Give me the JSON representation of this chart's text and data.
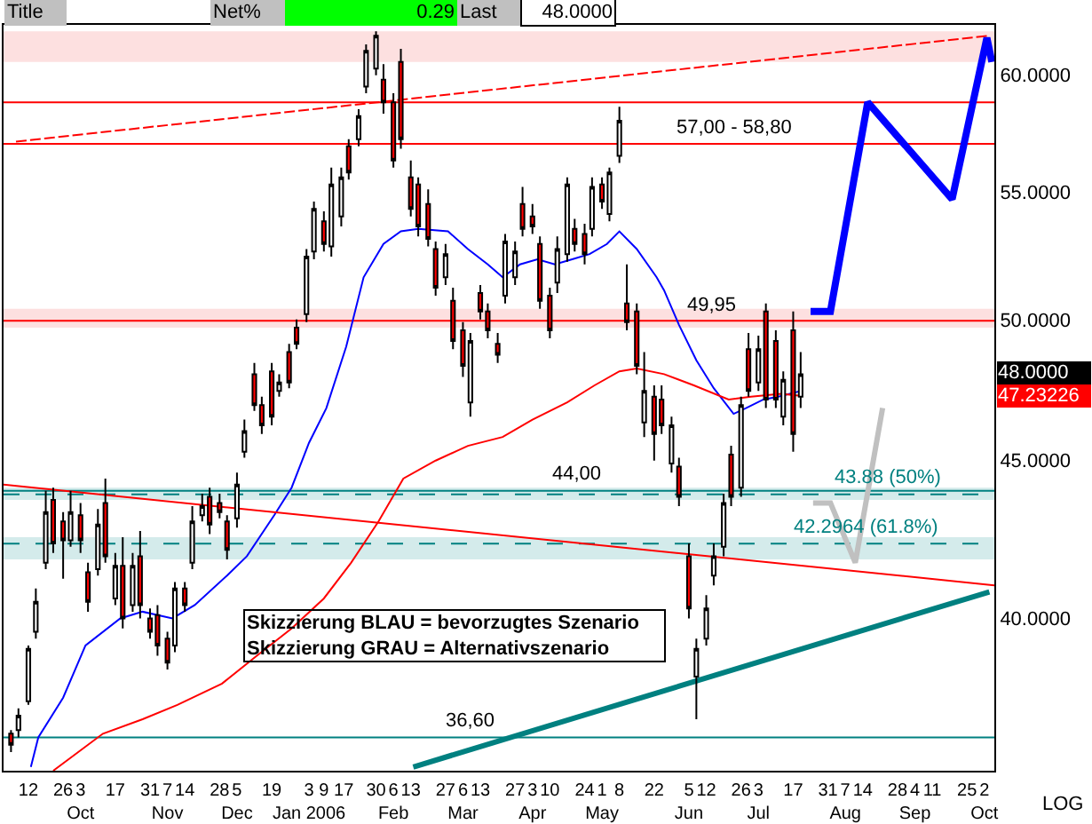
{
  "chart_data": {
    "type": "candlestick",
    "x": [
      "2005-09-05",
      "2005-09-08",
      "2005-09-12",
      "2005-09-15",
      "2005-09-19",
      "2005-09-22",
      "2005-09-26",
      "2005-09-29",
      "2005-10-03",
      "2005-10-06",
      "2005-10-10",
      "2005-10-13",
      "2005-10-17",
      "2005-10-20",
      "2005-10-24",
      "2005-10-27",
      "2005-10-31",
      "2005-11-03",
      "2005-11-07",
      "2005-11-10",
      "2005-11-14",
      "2005-11-17",
      "2005-11-21",
      "2005-11-24",
      "2005-11-28",
      "2005-12-01",
      "2005-12-05",
      "2005-12-08",
      "2005-12-12",
      "2005-12-15",
      "2005-12-19",
      "2005-12-22",
      "2005-12-26",
      "2005-12-29",
      "2006-01-02",
      "2006-01-05",
      "2006-01-09",
      "2006-01-12",
      "2006-01-16",
      "2006-01-19",
      "2006-01-23",
      "2006-01-26",
      "2006-01-30",
      "2006-02-02",
      "2006-02-06",
      "2006-02-09",
      "2006-02-13",
      "2006-02-16",
      "2006-02-20",
      "2006-02-23",
      "2006-02-27",
      "2006-03-02",
      "2006-03-06",
      "2006-03-09",
      "2006-03-13",
      "2006-03-16",
      "2006-03-20",
      "2006-03-23",
      "2006-03-27",
      "2006-03-30",
      "2006-04-03",
      "2006-04-06",
      "2006-04-10",
      "2006-04-13",
      "2006-04-17",
      "2006-04-20",
      "2006-04-24",
      "2006-04-27",
      "2006-05-01",
      "2006-05-04",
      "2006-05-08",
      "2006-05-11",
      "2006-05-15",
      "2006-05-18",
      "2006-05-22",
      "2006-05-25",
      "2006-05-29",
      "2006-06-01",
      "2006-06-05",
      "2006-06-08",
      "2006-06-12",
      "2006-06-15",
      "2006-06-19",
      "2006-06-22",
      "2006-06-26",
      "2006-06-29",
      "2006-07-03",
      "2006-07-06",
      "2006-07-10",
      "2006-07-13",
      "2006-07-17",
      "2006-07-20"
    ],
    "ohlc": [
      [
        36.7,
        36.8,
        36.2,
        36.4
      ],
      [
        36.8,
        37.4,
        36.6,
        37.2
      ],
      [
        37.6,
        39.2,
        37.5,
        39.1
      ],
      [
        39.6,
        40.9,
        39.4,
        40.5
      ],
      [
        41.7,
        44.0,
        41.5,
        43.3
      ],
      [
        43.7,
        44.1,
        42.0,
        42.3
      ],
      [
        43.0,
        43.3,
        41.2,
        42.4
      ],
      [
        42.4,
        44.0,
        42.2,
        43.3
      ],
      [
        43.2,
        43.6,
        42.0,
        42.4
      ],
      [
        41.4,
        41.7,
        40.2,
        40.5
      ],
      [
        41.5,
        43.4,
        41.3,
        42.9
      ],
      [
        43.6,
        44.4,
        41.7,
        41.9
      ],
      [
        40.6,
        42.0,
        40.4,
        41.6
      ],
      [
        41.6,
        42.5,
        39.7,
        40.0
      ],
      [
        40.4,
        42.0,
        40.2,
        41.6
      ],
      [
        41.9,
        42.7,
        40.0,
        40.4
      ],
      [
        40.0,
        40.3,
        39.4,
        39.6
      ],
      [
        40.1,
        40.4,
        38.9,
        39.2
      ],
      [
        39.4,
        39.6,
        38.5,
        38.7
      ],
      [
        39.2,
        41.1,
        39.0,
        40.9
      ],
      [
        40.9,
        41.1,
        40.2,
        40.4
      ],
      [
        41.7,
        43.5,
        41.5,
        43.0
      ],
      [
        43.2,
        43.9,
        43.0,
        43.5
      ],
      [
        43.8,
        44.1,
        42.6,
        42.9
      ],
      [
        43.6,
        43.9,
        43.1,
        43.3
      ],
      [
        43.0,
        43.2,
        41.8,
        42.1
      ],
      [
        43.1,
        44.6,
        42.8,
        44.2
      ],
      [
        45.3,
        46.4,
        45.1,
        46.0
      ],
      [
        48.0,
        48.4,
        46.7,
        46.9
      ],
      [
        46.9,
        47.2,
        45.9,
        46.2
      ],
      [
        48.1,
        48.4,
        46.2,
        46.5
      ],
      [
        47.4,
        48.0,
        47.2,
        47.7
      ],
      [
        48.8,
        49.1,
        47.5,
        47.7
      ],
      [
        49.7,
        50.0,
        48.9,
        49.1
      ],
      [
        50.2,
        52.7,
        49.9,
        52.4
      ],
      [
        52.6,
        54.6,
        52.3,
        54.3
      ],
      [
        53.8,
        54.2,
        52.6,
        52.9
      ],
      [
        52.8,
        56.0,
        52.4,
        55.3
      ],
      [
        54.0,
        56.0,
        53.6,
        55.6
      ],
      [
        56.9,
        57.2,
        55.5,
        55.8
      ],
      [
        57.2,
        58.5,
        56.9,
        58.2
      ],
      [
        59.5,
        61.4,
        59.2,
        61.1
      ],
      [
        60.3,
        62.0,
        60.0,
        61.8
      ],
      [
        59.8,
        60.5,
        58.3,
        58.8
      ],
      [
        58.8,
        59.2,
        56.0,
        56.3
      ],
      [
        60.6,
        61.2,
        56.8,
        57.2
      ],
      [
        55.6,
        56.3,
        54.0,
        54.3
      ],
      [
        55.3,
        55.6,
        53.2,
        53.6
      ],
      [
        54.5,
        55.1,
        52.8,
        53.1
      ],
      [
        52.7,
        53.0,
        50.9,
        51.2
      ],
      [
        51.6,
        52.9,
        51.3,
        52.5
      ],
      [
        50.7,
        51.2,
        48.9,
        49.2
      ],
      [
        49.6,
        49.9,
        47.9,
        48.3
      ],
      [
        47.0,
        49.5,
        46.5,
        49.2
      ],
      [
        51.0,
        51.3,
        50.0,
        50.3
      ],
      [
        50.3,
        50.6,
        49.3,
        49.6
      ],
      [
        49.1,
        49.5,
        48.4,
        48.7
      ],
      [
        50.9,
        53.3,
        50.6,
        53.0
      ],
      [
        51.6,
        53.0,
        51.3,
        52.6
      ],
      [
        54.5,
        55.2,
        53.2,
        53.5
      ],
      [
        54.0,
        54.5,
        53.3,
        53.6
      ],
      [
        52.9,
        53.2,
        50.4,
        50.7
      ],
      [
        50.9,
        51.2,
        49.3,
        49.6
      ],
      [
        51.4,
        53.2,
        51.0,
        52.7
      ],
      [
        52.5,
        55.6,
        52.2,
        55.3
      ],
      [
        53.5,
        53.9,
        52.6,
        52.9
      ],
      [
        53.3,
        53.7,
        52.1,
        52.5
      ],
      [
        53.5,
        55.6,
        53.2,
        55.2
      ],
      [
        55.3,
        55.6,
        54.3,
        54.6
      ],
      [
        54.1,
        56.0,
        53.8,
        55.8
      ],
      [
        56.5,
        58.6,
        56.2,
        58.0
      ],
      [
        50.6,
        52.1,
        49.6,
        49.9
      ],
      [
        50.3,
        50.6,
        48.0,
        48.3
      ],
      [
        46.3,
        48.8,
        45.8,
        47.4
      ],
      [
        47.2,
        47.6,
        45.0,
        45.9
      ],
      [
        47.1,
        47.6,
        45.9,
        46.2
      ],
      [
        44.9,
        46.5,
        44.6,
        46.2
      ],
      [
        44.8,
        45.1,
        43.5,
        43.8
      ],
      [
        41.9,
        42.3,
        40.0,
        40.3
      ],
      [
        38.3,
        39.4,
        37.1,
        39.1
      ],
      [
        39.4,
        40.7,
        39.2,
        40.3
      ],
      [
        41.3,
        42.3,
        41.0,
        41.9
      ],
      [
        42.2,
        43.9,
        41.9,
        43.6
      ],
      [
        45.2,
        45.5,
        43.5,
        43.8
      ],
      [
        44.1,
        47.2,
        43.8,
        46.9
      ],
      [
        48.9,
        49.5,
        47.2,
        47.4
      ],
      [
        47.7,
        49.4,
        47.4,
        48.9
      ],
      [
        50.3,
        50.6,
        46.8,
        47.1
      ],
      [
        49.2,
        49.6,
        46.8,
        47.1
      ],
      [
        46.5,
        48.1,
        46.2,
        47.8
      ],
      [
        49.6,
        50.3,
        45.3,
        45.9
      ],
      [
        47.2,
        48.8,
        46.8,
        48.0
      ]
    ],
    "series": [
      {
        "type": "line",
        "color": "#0000ff",
        "x": [
          "2005-09-13",
          "2005-09-16",
          "2005-09-26",
          "2005-10-05",
          "2005-10-19",
          "2005-10-28",
          "2005-11-09",
          "2005-11-18",
          "2005-12-01",
          "2005-12-09",
          "2005-12-20",
          "2005-12-27",
          "2006-01-03",
          "2006-01-10",
          "2006-01-18",
          "2006-01-25",
          "2006-02-02",
          "2006-02-09",
          "2006-02-16",
          "2006-02-28",
          "2006-03-08",
          "2006-03-16",
          "2006-03-22",
          "2006-03-29",
          "2006-04-05",
          "2006-04-12",
          "2006-04-19",
          "2006-04-26",
          "2006-05-03",
          "2006-05-08",
          "2006-05-15",
          "2006-05-23",
          "2006-05-26",
          "2006-06-01",
          "2006-06-08",
          "2006-06-15",
          "2006-06-23",
          "2006-06-28",
          "2006-07-05",
          "2006-07-11",
          "2006-07-20"
        ],
        "values": [
          35.8,
          36.6,
          37.7,
          39.2,
          40.0,
          40.2,
          40.0,
          40.4,
          41.3,
          41.9,
          43.2,
          44.1,
          45.6,
          46.8,
          49.0,
          51.6,
          52.9,
          53.4,
          53.5,
          53.4,
          52.7,
          52.1,
          51.6,
          52.1,
          52.3,
          52.1,
          52.3,
          52.5,
          52.9,
          53.4,
          52.7,
          51.6,
          51.1,
          49.8,
          48.5,
          47.5,
          46.6,
          46.8,
          47.1,
          47.2,
          47.4
        ]
      },
      {
        "type": "line",
        "color": "#ff0000",
        "x": [
          "2005-09-22",
          "2005-10-12",
          "2005-10-28",
          "2005-11-11",
          "2005-11-29",
          "2005-12-13",
          "2005-12-27",
          "2006-01-09",
          "2006-01-20",
          "2006-01-31",
          "2006-02-10",
          "2006-02-23",
          "2006-03-08",
          "2006-03-22",
          "2006-04-03",
          "2006-04-17",
          "2006-04-28",
          "2006-05-08",
          "2006-05-15",
          "2006-05-26",
          "2006-06-07",
          "2006-06-21",
          "2006-06-30",
          "2006-07-12",
          "2006-07-20"
        ],
        "values": [
          35.7,
          36.7,
          37.1,
          37.5,
          38.1,
          38.9,
          39.7,
          40.6,
          41.7,
          43.0,
          44.4,
          45.0,
          45.5,
          45.8,
          46.4,
          47.0,
          47.6,
          48.1,
          48.2,
          48.0,
          47.6,
          47.1,
          47.2,
          47.3,
          47.23
        ]
      },
      {
        "type": "line",
        "color": "#ff0000",
        "x": [
          "2005-09-02",
          "2006-10-06"
        ],
        "values": [
          44.2,
          41.0
        ]
      },
      {
        "type": "line",
        "color": "#ff0000",
        "line_style": "dashed",
        "x": [
          "2005-09-07",
          "2006-10-04"
        ],
        "values": [
          57.1,
          61.8
        ]
      },
      {
        "type": "line",
        "color": "#008080",
        "x": [
          "2006-02-14",
          "2006-10-04"
        ],
        "values": [
          35.8,
          40.8
        ]
      },
      {
        "type": "line",
        "color": "#0000ff",
        "x": [
          "2006-07-24",
          "2006-08-01",
          "2006-08-16",
          "2006-09-19",
          "2006-10-03",
          "2006-10-05"
        ],
        "values": [
          50.3,
          50.3,
          58.8,
          54.7,
          61.7,
          60.6
        ]
      },
      {
        "type": "line",
        "color": "#c0c0c0",
        "x": [
          "2006-07-25",
          "2006-08-01",
          "2006-08-11",
          "2006-08-22"
        ],
        "values": [
          43.6,
          43.6,
          41.7,
          46.8
        ]
      }
    ],
    "xlim": [
      "2005-09-02",
      "2006-10-06"
    ],
    "xticks": [
      {
        "value": "2005-09-12",
        "label": "12"
      },
      {
        "value": "2005-09-26",
        "label": "26"
      },
      {
        "value": "2005-10-03",
        "label": "3\nOct"
      },
      {
        "value": "2005-10-17",
        "label": "17"
      },
      {
        "value": "2005-10-31",
        "label": "31"
      },
      {
        "value": "2005-11-07",
        "label": "7\nNov"
      },
      {
        "value": "2005-11-14",
        "label": "14"
      },
      {
        "value": "2005-11-28",
        "label": "28"
      },
      {
        "value": "2005-12-05",
        "label": "5\nDec"
      },
      {
        "value": "2005-12-19",
        "label": "19"
      },
      {
        "value": "2006-01-03",
        "label": "3\nJan 2006"
      },
      {
        "value": "2006-01-09",
        "label": "9"
      },
      {
        "value": "2006-01-17",
        "label": "17"
      },
      {
        "value": "2006-01-30",
        "label": "30"
      },
      {
        "value": "2006-02-06",
        "label": "6\nFeb"
      },
      {
        "value": "2006-02-13",
        "label": "13"
      },
      {
        "value": "2006-02-27",
        "label": "27"
      },
      {
        "value": "2006-03-06",
        "label": "6\nMar"
      },
      {
        "value": "2006-03-13",
        "label": "13"
      },
      {
        "value": "2006-03-27",
        "label": "27"
      },
      {
        "value": "2006-04-03",
        "label": "3\nApr"
      },
      {
        "value": "2006-04-10",
        "label": "10"
      },
      {
        "value": "2006-04-24",
        "label": "24"
      },
      {
        "value": "2006-05-01",
        "label": "1\nMay"
      },
      {
        "value": "2006-05-08",
        "label": "8"
      },
      {
        "value": "2006-05-22",
        "label": "22"
      },
      {
        "value": "2006-06-05",
        "label": "5\nJun"
      },
      {
        "value": "2006-06-12",
        "label": "12"
      },
      {
        "value": "2006-06-26",
        "label": "26"
      },
      {
        "value": "2006-07-03",
        "label": "3\nJul"
      },
      {
        "value": "2006-07-17",
        "label": "17"
      },
      {
        "value": "2006-07-31",
        "label": "31"
      },
      {
        "value": "2006-08-07",
        "label": "7\nAug"
      },
      {
        "value": "2006-08-14",
        "label": "14"
      },
      {
        "value": "2006-08-28",
        "label": "28"
      },
      {
        "value": "2006-09-04",
        "label": "4\nSep"
      },
      {
        "value": "2006-09-11",
        "label": "11"
      },
      {
        "value": "2006-09-25",
        "label": "25"
      },
      {
        "value": "2006-10-02",
        "label": "2\nOct"
      }
    ],
    "ylim": [
      35.7,
      62.3
    ],
    "yticks": [
      {
        "value": 40,
        "label": "40.0000"
      },
      {
        "value": 45,
        "label": "45.0000"
      },
      {
        "value": 50,
        "label": "50.0000"
      },
      {
        "value": 55,
        "label": "55.0000"
      },
      {
        "value": 60,
        "label": "60.0000"
      }
    ],
    "log": true,
    "marker": "none",
    "ref_lines": [
      {
        "axis": "y",
        "value": 58.8,
        "color": "#ff0000"
      },
      {
        "axis": "y",
        "value": 57.0,
        "color": "#ff0000"
      },
      {
        "axis": "y",
        "value": 49.95,
        "color": "#ff0000"
      },
      {
        "axis": "y",
        "value": 44.0,
        "color": "#008080"
      },
      {
        "axis": "y",
        "value": 36.6,
        "color": "#008080"
      },
      {
        "axis": "y",
        "value": 43.88,
        "color": "#008080",
        "line_style": "dashed"
      },
      {
        "axis": "y",
        "value": 42.2964,
        "color": "#008080",
        "line_style": "dashed"
      }
    ],
    "bands": [
      {
        "axis": "y",
        "from": 60.6,
        "to": 62.0,
        "color": "#fde0e0"
      },
      {
        "axis": "y",
        "from": 49.7,
        "to": 50.4,
        "color": "#fde0e0"
      },
      {
        "axis": "y",
        "from": 43.7,
        "to": 44.1,
        "color": "#d4ebeb"
      },
      {
        "axis": "y",
        "from": 41.8,
        "to": 42.5,
        "color": "#d4ebeb"
      }
    ],
    "annotations": [
      {
        "text": "57,00 - 58,80",
        "x": "2006-06-23",
        "y": 57.0
      },
      {
        "text": "49,95",
        "x": "2006-06-14",
        "y": 49.95
      },
      {
        "text": "44,00",
        "x": "2006-04-21",
        "y": 44.0
      },
      {
        "text": "36,60",
        "x": "2006-03-09",
        "y": 36.6
      },
      {
        "text": "43.88 (50%)",
        "x": "2006-08-24",
        "y": 43.88
      },
      {
        "text": "42.2964 (61.8%)",
        "x": "2006-08-15",
        "y": 42.2964
      },
      "48.0000",
      "47.23226",
      "Title",
      "Net%",
      "0.29",
      "Last",
      "48.0000",
      "Skizzierung BLAU = bevorzugtes Szenario\nSkizzierung GRAU = Alternativszenario",
      "LOG"
    ]
  }
}
